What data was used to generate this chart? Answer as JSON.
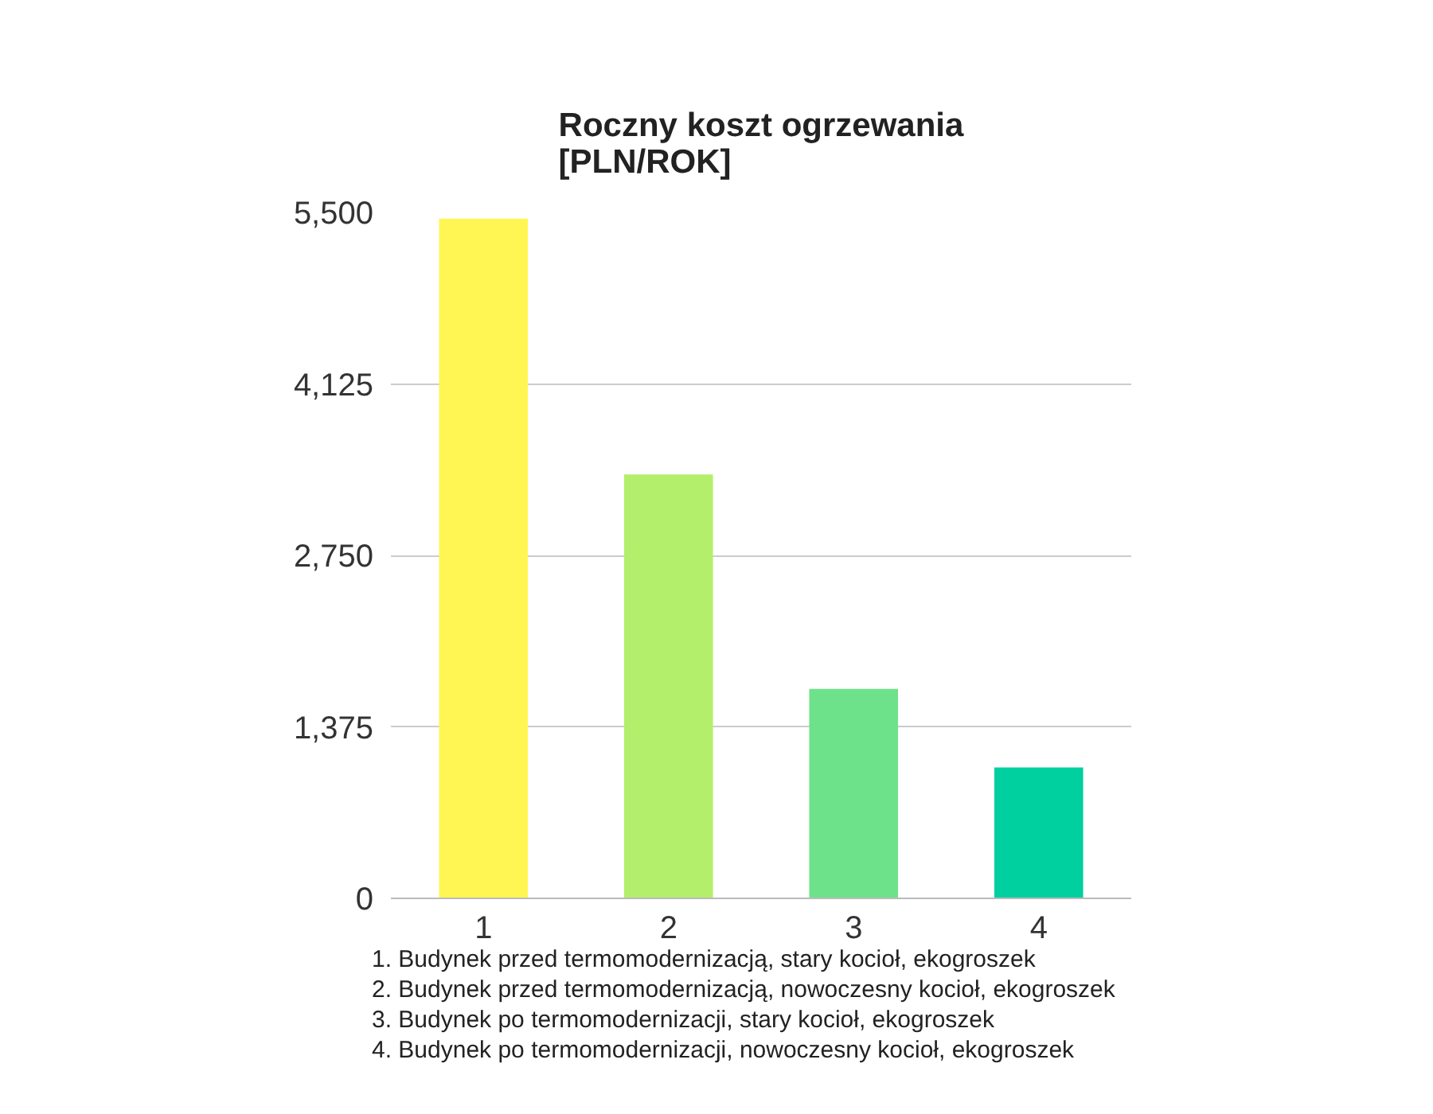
{
  "chart_data": {
    "type": "bar",
    "title": "Roczny koszt ogrzewania\n[PLN/ROK]",
    "categories": [
      "1",
      "2",
      "3",
      "4"
    ],
    "values": [
      5450,
      3400,
      1680,
      1050
    ],
    "colors": [
      "#fff654",
      "#b3ef6a",
      "#6ee28a",
      "#00cfa0"
    ],
    "ylim": [
      0,
      5500
    ],
    "yticks": [
      0,
      {
        "value": 1375,
        "label": "1,375"
      },
      {
        "value": 2750,
        "label": "2,750"
      },
      {
        "value": 4125,
        "label": "4,125"
      },
      {
        "value": 5500,
        "label": "5,500"
      }
    ],
    "grid": "y",
    "annotations": [
      "1. Budynek przed termomodernizacją, stary kocioł, ekogroszek",
      "2. Budynek przed termomodernizacją, nowoczesny kocioł, ekogroszek",
      "3. Budynek po termomodernizacji, stary kocioł, ekogroszek",
      "4. Budynek po termomodernizacji, nowoczesny kocioł, ekogroszek"
    ]
  }
}
